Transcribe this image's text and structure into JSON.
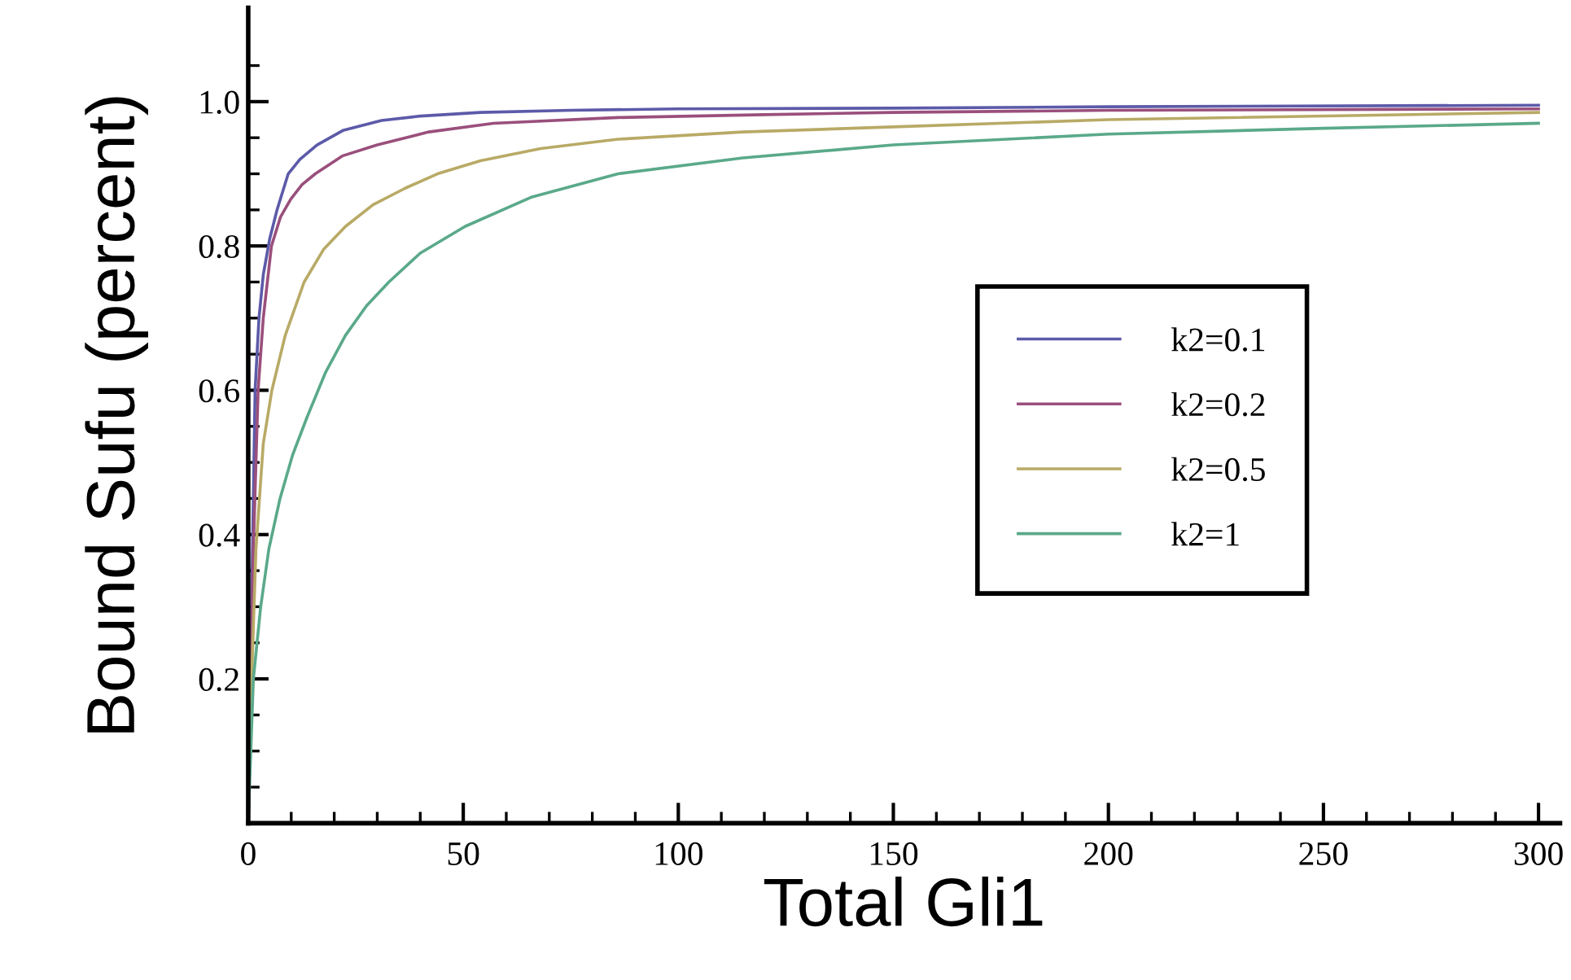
{
  "chart_data": {
    "type": "line",
    "xlabel": "Total Gli1",
    "ylabel": "Bound Sufu (percent)",
    "xlim": [
      0,
      305
    ],
    "ylim": [
      0,
      1.13
    ],
    "xticks": [
      0,
      {
        "value": 10,
        "label": null
      },
      {
        "value": 20,
        "label": null
      },
      {
        "value": 30,
        "label": null
      },
      {
        "value": 40,
        "label": null
      },
      50,
      {
        "value": 60,
        "label": null
      },
      {
        "value": 70,
        "label": null
      },
      {
        "value": 80,
        "label": null
      },
      {
        "value": 90,
        "label": null
      },
      100,
      {
        "value": 110,
        "label": null
      },
      {
        "value": 120,
        "label": null
      },
      {
        "value": 130,
        "label": null
      },
      {
        "value": 140,
        "label": null
      },
      150,
      {
        "value": 160,
        "label": null
      },
      {
        "value": 170,
        "label": null
      },
      {
        "value": 180,
        "label": null
      },
      {
        "value": 190,
        "label": null
      },
      200,
      {
        "value": 210,
        "label": null
      },
      {
        "value": 220,
        "label": null
      },
      {
        "value": 230,
        "label": null
      },
      {
        "value": 240,
        "label": null
      },
      250,
      {
        "value": 260,
        "label": null
      },
      {
        "value": 270,
        "label": null
      },
      {
        "value": 280,
        "label": null
      },
      {
        "value": 290,
        "label": null
      },
      300
    ],
    "yticks": [
      {
        "value": 0.05,
        "label": null
      },
      {
        "value": 0.1,
        "label": null
      },
      {
        "value": 0.15,
        "label": null
      },
      0.2,
      {
        "value": 0.25,
        "label": null
      },
      {
        "value": 0.3,
        "label": null
      },
      {
        "value": 0.35,
        "label": null
      },
      0.4,
      {
        "value": 0.45,
        "label": null
      },
      {
        "value": 0.5,
        "label": null
      },
      {
        "value": 0.55,
        "label": null
      },
      0.6,
      {
        "value": 0.65,
        "label": null
      },
      {
        "value": 0.7,
        "label": null
      },
      {
        "value": 0.75,
        "label": null
      },
      0.8,
      {
        "value": 0.85,
        "label": null
      },
      {
        "value": 0.9,
        "label": null
      },
      {
        "value": 0.95,
        "label": null
      },
      {
        "value": 1.0,
        "label": "1.0"
      },
      {
        "value": 1.05,
        "label": null
      }
    ],
    "grid": false,
    "legend": "right",
    "marker": "none",
    "line_style": "solid",
    "series": [
      {
        "name": "k2=0.1",
        "color": "#5c5aa8",
        "x": [
          0,
          0.5,
          1,
          1.6,
          2.5,
          3.5,
          5,
          6.7,
          9.3,
          12,
          16,
          22,
          31,
          40,
          54,
          75,
          100,
          150,
          200,
          300
        ],
        "values": [
          0,
          0.2,
          0.38,
          0.6,
          0.7,
          0.76,
          0.81,
          0.85,
          0.9,
          0.92,
          0.94,
          0.96,
          0.974,
          0.98,
          0.985,
          0.988,
          0.99,
          0.991,
          0.993,
          0.995
        ]
      },
      {
        "name": "k2=0.2",
        "color": "#9a4f7c",
        "x": [
          0,
          0.6,
          1.2,
          2.3,
          3.5,
          5.4,
          7.5,
          9.9,
          12.5,
          15.6,
          22,
          30,
          42,
          57,
          86,
          120,
          150,
          200,
          300
        ],
        "values": [
          0,
          0.2,
          0.38,
          0.6,
          0.7,
          0.8,
          0.84,
          0.865,
          0.885,
          0.9,
          0.925,
          0.94,
          0.958,
          0.97,
          0.978,
          0.982,
          0.985,
          0.988,
          0.99
        ]
      },
      {
        "name": "k2=0.5",
        "color": "#b8aa66",
        "x": [
          0,
          0.8,
          1.8,
          3.5,
          5.5,
          8.6,
          13,
          17.5,
          22.6,
          29,
          36.5,
          44,
          54,
          68,
          86,
          115,
          150,
          200,
          300
        ],
        "values": [
          0,
          0.2,
          0.38,
          0.526,
          0.6,
          0.676,
          0.75,
          0.795,
          0.827,
          0.857,
          0.88,
          0.9,
          0.918,
          0.935,
          0.948,
          0.958,
          0.965,
          0.975,
          0.985
        ]
      },
      {
        "name": "k2=1",
        "color": "#5aa98a",
        "x": [
          0,
          1.2,
          2.9,
          4.8,
          7.4,
          10.3,
          13.7,
          18,
          22.6,
          27.5,
          32.7,
          40,
          50.4,
          66,
          86,
          115,
          150,
          200,
          250,
          300
        ],
        "values": [
          0,
          0.2,
          0.3,
          0.38,
          0.45,
          0.51,
          0.563,
          0.625,
          0.676,
          0.717,
          0.75,
          0.79,
          0.827,
          0.868,
          0.9,
          0.922,
          0.94,
          0.955,
          0.963,
          0.97
        ]
      }
    ]
  }
}
